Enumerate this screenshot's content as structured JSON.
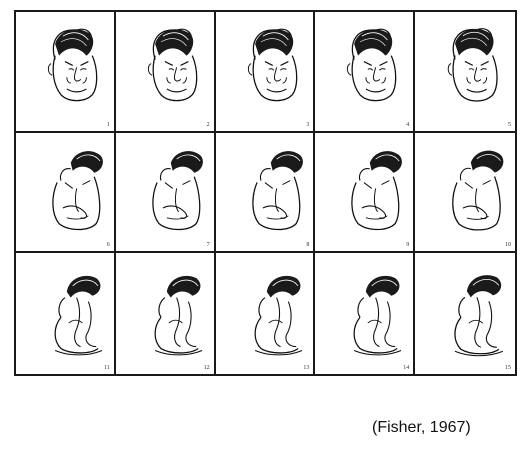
{
  "figure": {
    "panels": [
      {
        "number": "1"
      },
      {
        "number": "2"
      },
      {
        "number": "3"
      },
      {
        "number": "4"
      },
      {
        "number": "5"
      },
      {
        "number": "6"
      },
      {
        "number": "7"
      },
      {
        "number": "8"
      },
      {
        "number": "9"
      },
      {
        "number": "10"
      },
      {
        "number": "11"
      },
      {
        "number": "12"
      },
      {
        "number": "13"
      },
      {
        "number": "14"
      },
      {
        "number": "15"
      }
    ]
  },
  "caption": "(Fisher, 1967)"
}
